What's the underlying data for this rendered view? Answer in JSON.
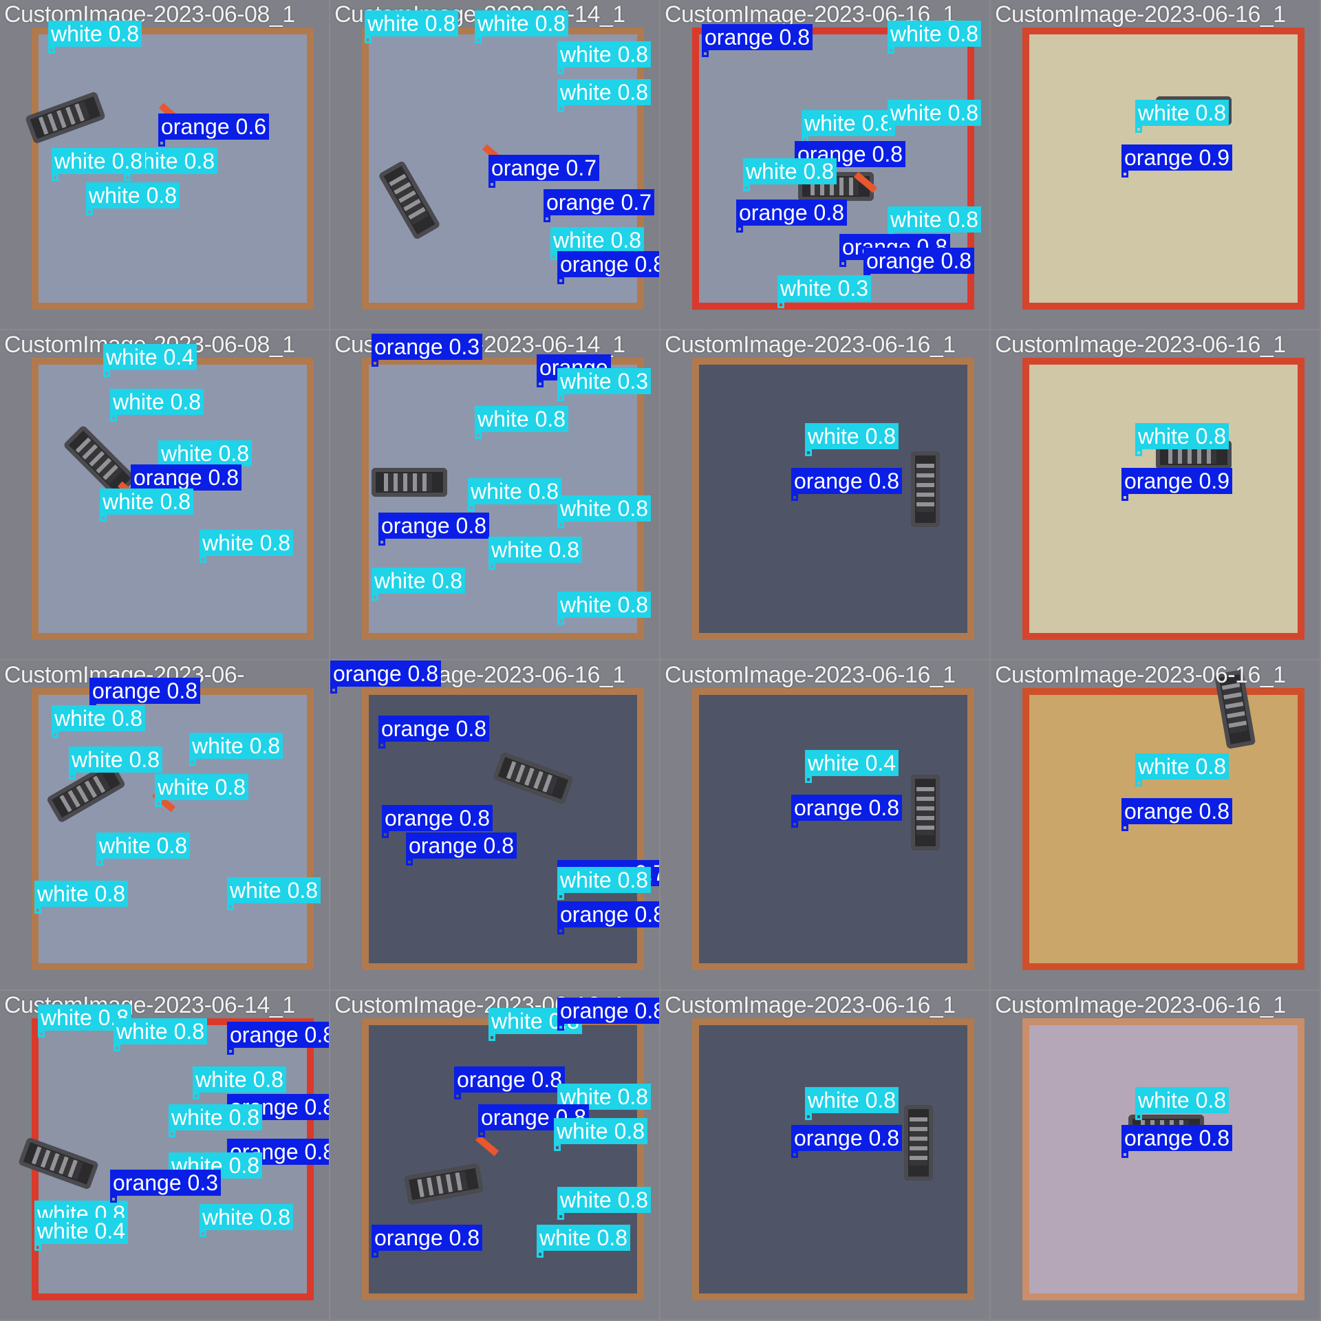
{
  "colors": {
    "white_class": "#1fd3e8",
    "orange_class": "#0a1ee6"
  },
  "tiles": [
    {
      "title": "CustomImage-2023-06-08_1",
      "detections": [
        {
          "cls": "white",
          "label": "white 0.8"
        },
        {
          "cls": "orange",
          "label": "orange 0.6"
        },
        {
          "cls": "white",
          "label": "white 0.8"
        },
        {
          "cls": "white",
          "label": "white 0.8"
        },
        {
          "cls": "white",
          "label": "white 0.8"
        }
      ]
    },
    {
      "title": "CustomImage-2023-06-14_1",
      "detections": [
        {
          "cls": "white",
          "label": "white 0.8"
        },
        {
          "cls": "white",
          "label": "white 0.8"
        },
        {
          "cls": "white",
          "label": "white 0.8"
        },
        {
          "cls": "white",
          "label": "white 0.8"
        },
        {
          "cls": "orange",
          "label": "orange 0.7"
        },
        {
          "cls": "orange",
          "label": "orange 0.7"
        },
        {
          "cls": "white",
          "label": "white 0.8"
        },
        {
          "cls": "orange",
          "label": "orange 0.8"
        }
      ]
    },
    {
      "title": "CustomImage-2023-06-16_1",
      "detections": [
        {
          "cls": "orange",
          "label": "orange 0.8"
        },
        {
          "cls": "white",
          "label": "white 0.8"
        },
        {
          "cls": "white",
          "label": "white 0.8"
        },
        {
          "cls": "white",
          "label": "white 0.8"
        },
        {
          "cls": "orange",
          "label": "orange 0.8"
        },
        {
          "cls": "white",
          "label": "white 0.8"
        },
        {
          "cls": "orange",
          "label": "orange 0.8"
        },
        {
          "cls": "white",
          "label": "white 0.8"
        },
        {
          "cls": "orange",
          "label": "orange 0.8"
        },
        {
          "cls": "orange",
          "label": "orange 0.8"
        },
        {
          "cls": "white",
          "label": "white 0.3"
        }
      ]
    },
    {
      "title": "CustomImage-2023-06-16_1",
      "detections": [
        {
          "cls": "white",
          "label": "white 0.8"
        },
        {
          "cls": "orange",
          "label": "orange 0.9"
        }
      ]
    },
    {
      "title": "CustomImage-2023-06-08_1",
      "detections": [
        {
          "cls": "white",
          "label": "white 0.4"
        },
        {
          "cls": "white",
          "label": "white 0.8"
        },
        {
          "cls": "white",
          "label": "white 0.8"
        },
        {
          "cls": "orange",
          "label": "orange 0.8"
        },
        {
          "cls": "white",
          "label": "white 0.8"
        },
        {
          "cls": "white",
          "label": "white 0.8"
        }
      ]
    },
    {
      "title": "CustomImage-2023-06-14_1",
      "detections": [
        {
          "cls": "orange",
          "label": "orange 0.3"
        },
        {
          "cls": "orange",
          "label": "orange"
        },
        {
          "cls": "white",
          "label": "white 0.3"
        },
        {
          "cls": "white",
          "label": "white 0.8"
        },
        {
          "cls": "white",
          "label": "white 0.8"
        },
        {
          "cls": "white",
          "label": "white 0.8"
        },
        {
          "cls": "orange",
          "label": "orange 0.8"
        },
        {
          "cls": "white",
          "label": "white 0.8"
        },
        {
          "cls": "white",
          "label": "white 0.8"
        },
        {
          "cls": "white",
          "label": "white 0.8"
        }
      ]
    },
    {
      "title": "CustomImage-2023-06-16_1",
      "detections": [
        {
          "cls": "white",
          "label": "white 0.8"
        },
        {
          "cls": "orange",
          "label": "orange 0.8"
        }
      ]
    },
    {
      "title": "CustomImage-2023-06-16_1",
      "detections": [
        {
          "cls": "white",
          "label": "white 0.8"
        },
        {
          "cls": "orange",
          "label": "orange 0.9"
        }
      ]
    },
    {
      "title": "CustomImage-2023-06-",
      "detections": [
        {
          "cls": "orange",
          "label": "orange 0.8"
        },
        {
          "cls": "white",
          "label": "white 0.8"
        },
        {
          "cls": "white",
          "label": "white 0.8"
        },
        {
          "cls": "white",
          "label": "white 0.8"
        },
        {
          "cls": "white",
          "label": "white 0.8"
        },
        {
          "cls": "white",
          "label": "white 0.8"
        },
        {
          "cls": "white",
          "label": "white 0.8"
        },
        {
          "cls": "white",
          "label": "white 0.8"
        }
      ]
    },
    {
      "title": "CustomImage-2023-06-16_1",
      "detections": [
        {
          "cls": "orange",
          "label": "orange 0.8"
        },
        {
          "cls": "orange",
          "label": "orange 0.8"
        },
        {
          "cls": "orange",
          "label": "orange 0.8"
        },
        {
          "cls": "orange",
          "label": "orange 0.8"
        },
        {
          "cls": "orange",
          "label": "orange 0.7"
        },
        {
          "cls": "white",
          "label": "white 0.8"
        },
        {
          "cls": "orange",
          "label": "orange 0.8"
        }
      ]
    },
    {
      "title": "CustomImage-2023-06-16_1",
      "detections": [
        {
          "cls": "white",
          "label": "white 0.4"
        },
        {
          "cls": "orange",
          "label": "orange 0.8"
        }
      ]
    },
    {
      "title": "CustomImage-2023-06-16_1",
      "detections": [
        {
          "cls": "white",
          "label": "white 0.8"
        },
        {
          "cls": "orange",
          "label": "orange 0.8"
        }
      ]
    },
    {
      "title": "CustomImage-2023-06-14_1",
      "detections": [
        {
          "cls": "white",
          "label": "white 0.8"
        },
        {
          "cls": "white",
          "label": "white 0.8"
        },
        {
          "cls": "orange",
          "label": "orange 0.8"
        },
        {
          "cls": "white",
          "label": "white 0.8"
        },
        {
          "cls": "orange",
          "label": "orange 0.8"
        },
        {
          "cls": "white",
          "label": "white 0.8"
        },
        {
          "cls": "orange",
          "label": "orange 0.8"
        },
        {
          "cls": "white",
          "label": "white 0.8"
        },
        {
          "cls": "white",
          "label": "white 0.8"
        },
        {
          "cls": "orange",
          "label": "orange 0.3"
        },
        {
          "cls": "white",
          "label": "white 0.4"
        },
        {
          "cls": "white",
          "label": "white 0.8"
        }
      ]
    },
    {
      "title": "CustomImage-2023-06-16_1",
      "detections": [
        {
          "cls": "white",
          "label": "white 0.8"
        },
        {
          "cls": "orange",
          "label": "orange 0.8"
        },
        {
          "cls": "orange",
          "label": "orange 0.8"
        },
        {
          "cls": "white",
          "label": "white 0.8"
        },
        {
          "cls": "orange",
          "label": "orange 0.8"
        },
        {
          "cls": "white",
          "label": "white 0.8"
        },
        {
          "cls": "white",
          "label": "white 0.8"
        },
        {
          "cls": "orange",
          "label": "orange 0.8"
        },
        {
          "cls": "white",
          "label": "white 0.8"
        }
      ]
    },
    {
      "title": "CustomImage-2023-06-16_1",
      "detections": [
        {
          "cls": "white",
          "label": "white 0.8"
        },
        {
          "cls": "orange",
          "label": "orange 0.8"
        }
      ]
    },
    {
      "title": "CustomImage-2023-06-16_1",
      "detections": [
        {
          "cls": "white",
          "label": "white 0.8"
        },
        {
          "cls": "orange",
          "label": "orange 0.8"
        }
      ]
    }
  ]
}
